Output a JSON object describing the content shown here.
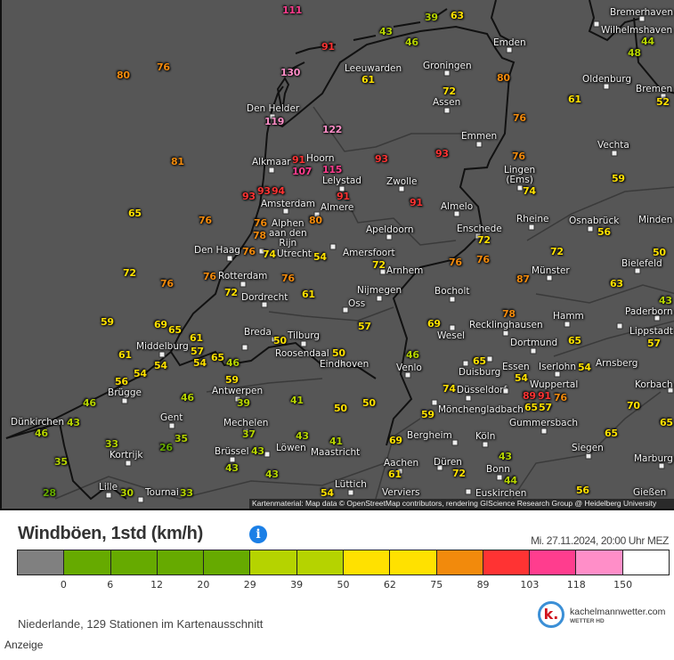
{
  "map": {
    "attribution": "Kartenmaterial: Map data © OpenStreetMap contributors, rendering GIScience Research Group @ Heidelberg University",
    "cities": [
      "Den Helder",
      "Alkmaar",
      "Hoorn",
      "Lelystad",
      "Amsterdam",
      "Almere",
      "Alphen\naan den\nRijn",
      "Den Haag",
      "Utrecht",
      "Bremerhaven",
      "Wilhelmshaven",
      "Emden",
      "Leeuwarden",
      "Groningen",
      "Oldenburg",
      "Bremen",
      "Assen",
      "Emmen",
      "Vechta",
      "Lingen\n(Ems)",
      "Zwolle",
      "Almelo",
      "Rheine",
      "Osnabrück",
      "Minden",
      "Apeldoorn",
      "Enschede",
      "Amersfoort",
      "Rotterdam",
      "Dordrecht",
      "Breda",
      "Tilburg",
      "Roosendaal",
      "Eindhoven",
      "Middelburg",
      "Brügge",
      "Antwerpen",
      "Gent",
      "Mechelen",
      "Dünkirchen",
      "Kortrijk",
      "Brüssel",
      "Löwen",
      "Maastricht",
      "Lille",
      "Tournai",
      "Arnhem",
      "Nijmegen",
      "Oss",
      "Bocholt",
      "Münster",
      "Bielefeld",
      "Paderborn",
      "Hamm",
      "Lippstadt",
      "Recklinghausen",
      "Wesel",
      "Dortmund",
      "Venlo",
      "Duisburg",
      "Essen",
      "Iserlohn",
      "Arnsberg",
      "Düsseldorf",
      "Wuppertal",
      "Korbach",
      "Mönchengladbach",
      "Gummersbach",
      "Bergheim",
      "Köln",
      "Siegen",
      "Aachen",
      "Düren",
      "Bonn",
      "Marburg",
      "Lüttich",
      "Verviers",
      "Euskirchen",
      "Gießen"
    ],
    "station_values": [
      111,
      91,
      130,
      80,
      76,
      119,
      122,
      81,
      107,
      91,
      115,
      93,
      93,
      93,
      93,
      94,
      91,
      91,
      65,
      76,
      76,
      80,
      78,
      76,
      74,
      54,
      72,
      76,
      76,
      72,
      72,
      56,
      74,
      76,
      76,
      80,
      61,
      72,
      39,
      63,
      43,
      46,
      44,
      48,
      61,
      52,
      59,
      50,
      72,
      76,
      76,
      72,
      76,
      61,
      59,
      69,
      65,
      61,
      57,
      61,
      54,
      54,
      65,
      46,
      54,
      56,
      59,
      39,
      46,
      46,
      43,
      46,
      37,
      35,
      26,
      33,
      43,
      43,
      35,
      43,
      28,
      30,
      33,
      50,
      50,
      41,
      43,
      41,
      50,
      50,
      57,
      46,
      69,
      78,
      65,
      54,
      63,
      87,
      43,
      57,
      65,
      74,
      54,
      91,
      89,
      76,
      57,
      65,
      59,
      70,
      65,
      65,
      69,
      61,
      72,
      43,
      44,
      56,
      54
    ]
  },
  "legend": {
    "title": "Windböen, 1std (km/h)",
    "info_icon": "info-icon",
    "datetime": "Mi. 27.11.2024, 20:00 Uhr MEZ",
    "colors": [
      "#808080",
      "#66aa00",
      "#66aa00",
      "#66aa00",
      "#66aa00",
      "#b5d300",
      "#b5d300",
      "#ffe100",
      "#ffe100",
      "#f28a0c",
      "#ff3333",
      "#ff3d8e",
      "#ff8ec8",
      "#ffffff"
    ],
    "ticks": [
      "0",
      "6",
      "12",
      "20",
      "29",
      "39",
      "50",
      "62",
      "75",
      "89",
      "103",
      "118",
      "150"
    ]
  },
  "footer": {
    "stations_text": "Niederlande, 129 Stationen im Kartenausschnitt",
    "ad_label": "Anzeige",
    "logo_letter": "k.",
    "logo_name": "kachelmannwetter.com",
    "logo_sub": "WETTER HD"
  }
}
